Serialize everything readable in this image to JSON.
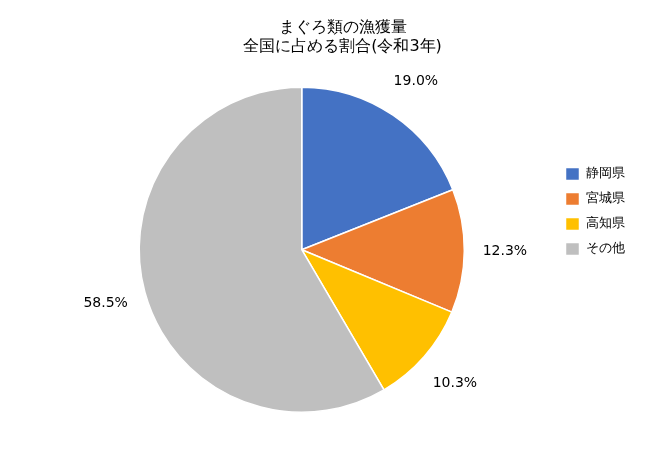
{
  "chart_data": {
    "type": "pie",
    "title": "まぐろ類の漁獲量\n全国に占める割合(令和3年)",
    "categories": [
      "静岡県",
      "宮城県",
      "高知県",
      "その他"
    ],
    "values": [
      19.0,
      12.3,
      10.3,
      58.5
    ],
    "colors": [
      "#4472C4",
      "#ED7D31",
      "#FFC000",
      "#BFBFBF"
    ],
    "data_labels": true,
    "value_labels": [
      "19.0%",
      "12.3%",
      "10.3%",
      "58.5%"
    ],
    "legend": "right"
  }
}
